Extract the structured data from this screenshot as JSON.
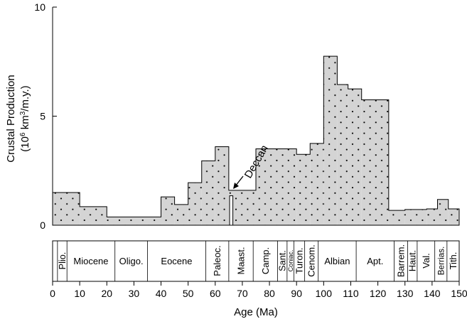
{
  "chart_data": {
    "type": "area",
    "ylabel_line1": "Crustal Production",
    "ylabel_line2_prefix": "(10",
    "ylabel_line2_sup": "6",
    "ylabel_line2_mid": " km",
    "ylabel_line2_sup2": "3",
    "ylabel_line2_suffix": "/m.y.)",
    "xlabel": "Age (Ma)",
    "xlim": [
      0,
      150
    ],
    "ylim": [
      0,
      10
    ],
    "x_ticks": [
      0,
      10,
      20,
      30,
      40,
      50,
      60,
      70,
      80,
      90,
      100,
      110,
      120,
      130,
      140,
      150
    ],
    "y_ticks": [
      0,
      5,
      10
    ],
    "fill_color": "#d4d4d4",
    "steps": [
      {
        "x0": 0,
        "x1": 10,
        "y": 1.5
      },
      {
        "x0": 10,
        "x1": 20,
        "y": 0.85
      },
      {
        "x0": 20,
        "x1": 40,
        "y": 0.38
      },
      {
        "x0": 40,
        "x1": 45,
        "y": 1.3
      },
      {
        "x0": 45,
        "x1": 50,
        "y": 0.95
      },
      {
        "x0": 50,
        "x1": 55,
        "y": 1.95
      },
      {
        "x0": 55,
        "x1": 60,
        "y": 2.95
      },
      {
        "x0": 60,
        "x1": 65,
        "y": 3.6
      },
      {
        "x0": 65,
        "x1": 75,
        "y": 1.6
      },
      {
        "x0": 75,
        "x1": 90,
        "y": 3.5
      },
      {
        "x0": 90,
        "x1": 95,
        "y": 3.25
      },
      {
        "x0": 95,
        "x1": 100,
        "y": 3.75
      },
      {
        "x0": 100,
        "x1": 105,
        "y": 7.75
      },
      {
        "x0": 105,
        "x1": 109,
        "y": 6.45
      },
      {
        "x0": 109,
        "x1": 114,
        "y": 6.25
      },
      {
        "x0": 114,
        "x1": 124,
        "y": 5.75
      },
      {
        "x0": 124,
        "x1": 130,
        "y": 0.68
      },
      {
        "x0": 130,
        "x1": 138,
        "y": 0.72
      },
      {
        "x0": 138,
        "x1": 142,
        "y": 0.75
      },
      {
        "x0": 142,
        "x1": 146,
        "y": 1.18
      },
      {
        "x0": 146,
        "x1": 150,
        "y": 0.75
      }
    ],
    "spike": {
      "x0": 65.3,
      "x1": 66.5,
      "y": 1.35
    },
    "annotation": {
      "text": "Deccan",
      "x": 66,
      "y": 1.8
    },
    "stages": [
      {
        "label": "Plio.",
        "x0": 1.8,
        "x1": 5.3,
        "vertical": true
      },
      {
        "label": "Miocene",
        "x0": 5.3,
        "x1": 23.0,
        "vertical": false
      },
      {
        "label": "Oligo.",
        "x0": 23.0,
        "x1": 35.0,
        "vertical": false
      },
      {
        "label": "Eocene",
        "x0": 35.0,
        "x1": 56.5,
        "vertical": false
      },
      {
        "label": "Paleoc.",
        "x0": 56.5,
        "x1": 65.0,
        "vertical": true
      },
      {
        "label": "Maast.",
        "x0": 65.0,
        "x1": 74.0,
        "vertical": true
      },
      {
        "label": "Camp.",
        "x0": 74.0,
        "x1": 83.0,
        "vertical": true
      },
      {
        "label": "Sant.",
        "x0": 83.0,
        "x1": 86.5,
        "vertical": true
      },
      {
        "label": "Coniac.",
        "x0": 86.5,
        "x1": 89.0,
        "vertical": true
      },
      {
        "label": "Turon.",
        "x0": 89.0,
        "x1": 93.0,
        "vertical": true
      },
      {
        "label": "Cenom.",
        "x0": 93.0,
        "x1": 98.0,
        "vertical": true
      },
      {
        "label": "Albian",
        "x0": 98.0,
        "x1": 112.0,
        "vertical": false
      },
      {
        "label": "Apt.",
        "x0": 112.0,
        "x1": 126.0,
        "vertical": false
      },
      {
        "label": "Barrem.",
        "x0": 126.0,
        "x1": 131.0,
        "vertical": true
      },
      {
        "label": "Haut.",
        "x0": 131.0,
        "x1": 134.5,
        "vertical": true
      },
      {
        "label": "Val.",
        "x0": 134.5,
        "x1": 141.0,
        "vertical": true
      },
      {
        "label": "Berrias.",
        "x0": 141.0,
        "x1": 145.5,
        "vertical": true
      },
      {
        "label": "Tith.",
        "x0": 145.5,
        "x1": 150.0,
        "vertical": true
      }
    ]
  }
}
